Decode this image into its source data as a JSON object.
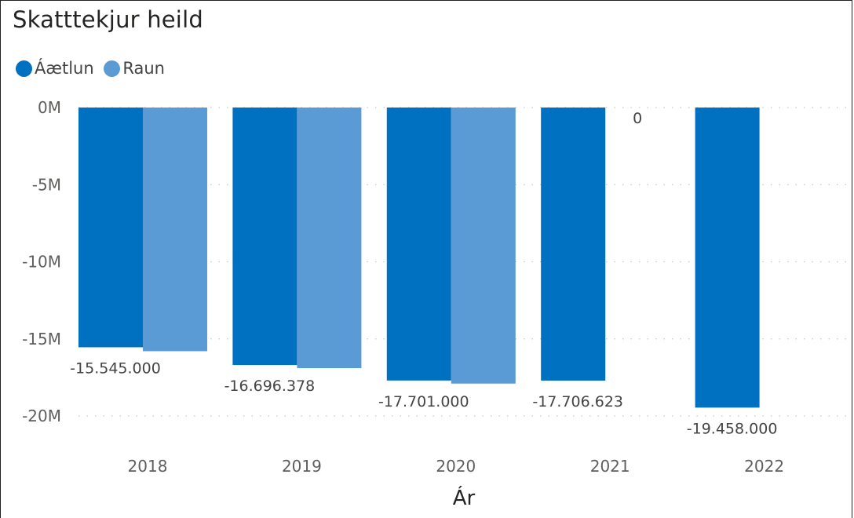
{
  "chart_data": {
    "type": "bar",
    "title": "Skatttekjur heild",
    "xlabel": "Ár",
    "ylabel": "",
    "categories": [
      "2018",
      "2019",
      "2020",
      "2021",
      "2022"
    ],
    "series": [
      {
        "name": "Áætlun",
        "color": "#0070C0",
        "values": [
          -15545000,
          -16696378,
          -17701000,
          -17706623,
          -19458000
        ],
        "labels": [
          "-15.545.000",
          "-16.696.378",
          "-17.701.000",
          "-17.706.623",
          "-19.458.000"
        ]
      },
      {
        "name": "Raun",
        "color": "#5B9BD5",
        "values": [
          -15800000,
          -16900000,
          -17900000,
          0,
          null
        ],
        "labels": [
          null,
          null,
          null,
          "0",
          null
        ]
      }
    ],
    "ylim": [
      -20000000,
      0
    ],
    "yticks": [
      {
        "value": 0,
        "label": "0M"
      },
      {
        "value": -5000000,
        "label": "-5M"
      },
      {
        "value": -10000000,
        "label": "-10M"
      },
      {
        "value": -15000000,
        "label": "-15M"
      },
      {
        "value": -20000000,
        "label": "-20M"
      }
    ],
    "grid": true,
    "legend_position": "top-left"
  }
}
